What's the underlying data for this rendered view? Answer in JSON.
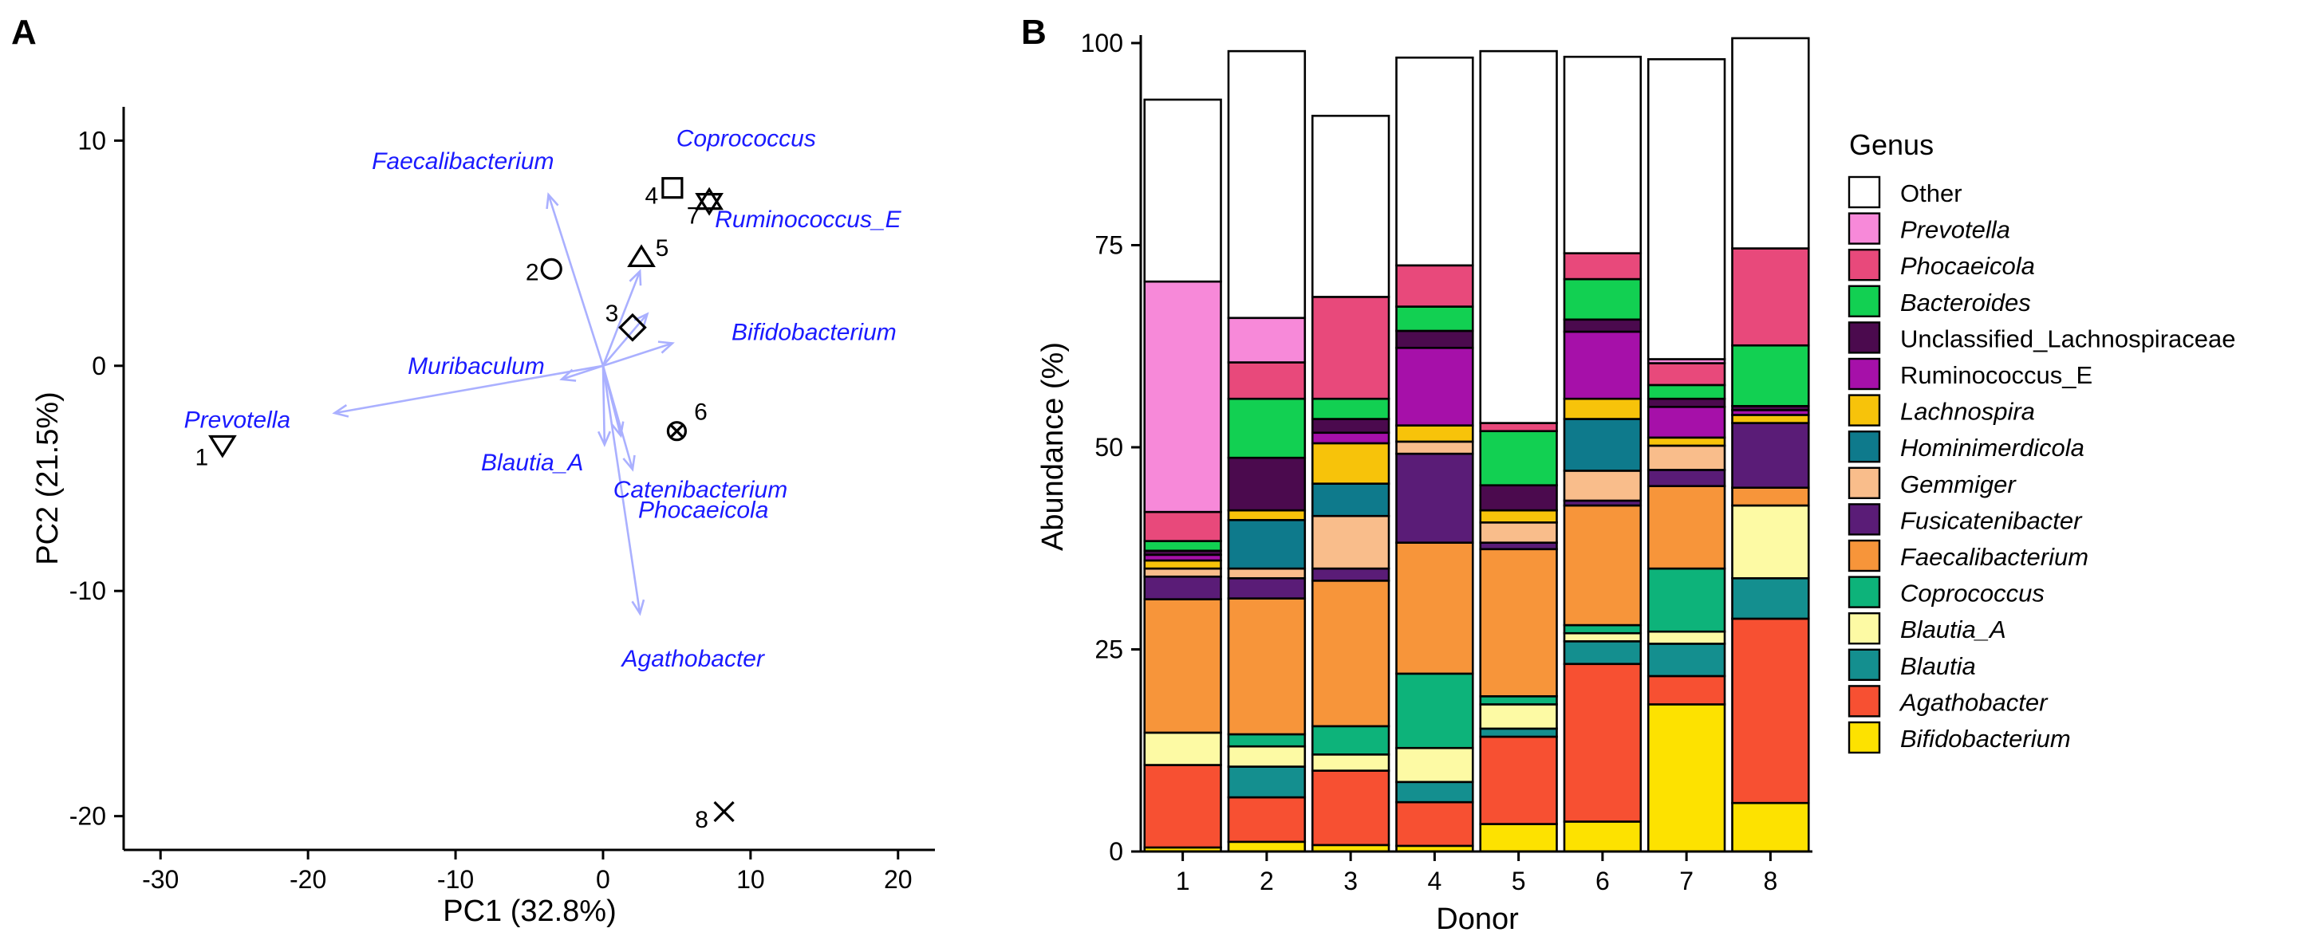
{
  "colors": {
    "arrow": "#aab0ff",
    "genus_label": "#1a1aff",
    "Other": "#ffffff",
    "Prevotella": "#f789d9",
    "Phocaeicola": "#e8497b",
    "Bacteroides": "#12d052",
    "Unclassified_Lachnospiraceae": "#4b0a4e",
    "Ruminococcus_E": "#a610a9",
    "Lachnospira": "#f7c30a",
    "Hominimerdicola": "#0e7a8c",
    "Gemmiger": "#f9bd8b",
    "Fusicatenibacter": "#5a1c77",
    "Faecalibacterium": "#f7953a",
    "Coprococcus": "#0db37a",
    "Blautia_A": "#fdfaa4",
    "Blautia": "#148f8f",
    "Agathobacter": "#f75032",
    "Bifidobacterium": "#fde200"
  },
  "chart_data": [
    {
      "panel": "A",
      "type": "scatter",
      "subtype": "pca-biplot",
      "xlabel": "PC1 (32.8%)",
      "ylabel": "PC2 (21.5%)",
      "xlim": [
        -32.5,
        22.5
      ],
      "ylim": [
        -21.5,
        11.5
      ],
      "xticks": [
        -30,
        -20,
        -10,
        0,
        10,
        20
      ],
      "yticks": [
        -20,
        -10,
        0,
        10
      ],
      "points": [
        {
          "label": "1",
          "x": -25.8,
          "y": -3.5,
          "shape": "triangle-down"
        },
        {
          "label": "2",
          "x": -3.5,
          "y": 4.3,
          "shape": "circle"
        },
        {
          "label": "3",
          "x": 2.0,
          "y": 1.7,
          "shape": "diamond"
        },
        {
          "label": "4",
          "x": 4.7,
          "y": 7.9,
          "shape": "square"
        },
        {
          "label": "5",
          "x": 2.6,
          "y": 4.8,
          "shape": "triangle-up"
        },
        {
          "label": "6",
          "x": 5.0,
          "y": -2.9,
          "shape": "circle-x"
        },
        {
          "label": "7",
          "x": 7.2,
          "y": 7.3,
          "shape": "hexagram"
        },
        {
          "label": "8",
          "x": 8.2,
          "y": -19.8,
          "shape": "x"
        }
      ],
      "loadings": [
        {
          "genus": "Prevotella",
          "x": -18.2,
          "y": -2.1
        },
        {
          "genus": "Faecalibacterium",
          "x": -3.7,
          "y": 7.6
        },
        {
          "genus": "Coprococcus",
          "x": 2.5,
          "y": 4.2
        },
        {
          "genus": "Ruminococcus_E",
          "x": 3.0,
          "y": 2.3
        },
        {
          "genus": "Bifidobacterium",
          "x": 4.7,
          "y": 1.0
        },
        {
          "genus": "Muribaculum",
          "x": -2.8,
          "y": -0.6
        },
        {
          "genus": "Blautia_A",
          "x": 0.1,
          "y": -3.5
        },
        {
          "genus": "Catenibacterium",
          "x": 1.2,
          "y": -3.1
        },
        {
          "genus": "Phocaeicola",
          "x": 2.0,
          "y": -4.6
        },
        {
          "genus": "Agathobacter",
          "x": 2.5,
          "y": -11.0
        }
      ],
      "genus_labels": [
        {
          "text": "Faecalibacterium",
          "x": -9.5,
          "y": 9.1
        },
        {
          "text": "Coprococcus",
          "x": 9.7,
          "y": 10.1
        },
        {
          "text": "Ruminococcus_E",
          "x": 13.9,
          "y": 6.5
        },
        {
          "text": "Bifidobacterium",
          "x": 14.3,
          "y": 1.5
        },
        {
          "text": "Muribaculum",
          "x": -8.6,
          "y": 0.0
        },
        {
          "text": "Prevotella",
          "x": -24.8,
          "y": -2.4
        },
        {
          "text": "Blautia_A",
          "x": -4.8,
          "y": -4.3
        },
        {
          "text": "Catenibacterium",
          "x": 6.6,
          "y": -5.5
        },
        {
          "text": "Phocaeicola",
          "x": 6.8,
          "y": -6.4
        },
        {
          "text": "Agathobacter",
          "x": 6.1,
          "y": -13.0
        }
      ]
    },
    {
      "panel": "B",
      "type": "bar",
      "stacked": true,
      "xlabel": "Donor",
      "ylabel": "Abundance (%)",
      "ylim": [
        0,
        100
      ],
      "yticks": [
        0,
        25,
        50,
        75,
        100
      ],
      "categories": [
        "1",
        "2",
        "3",
        "4",
        "5",
        "6",
        "7",
        "8"
      ],
      "series": [
        {
          "name": "Bifidobacterium",
          "values": [
            0.5,
            1.2,
            0.8,
            0.7,
            3.4,
            3.7,
            18.2,
            6.0
          ]
        },
        {
          "name": "Agathobacter",
          "values": [
            10.2,
            5.5,
            9.2,
            5.4,
            10.8,
            19.5,
            3.5,
            22.8
          ]
        },
        {
          "name": "Blautia",
          "values": [
            0.0,
            3.8,
            0.0,
            2.5,
            1.0,
            2.8,
            4.0,
            5.0
          ]
        },
        {
          "name": "Blautia_A",
          "values": [
            4.0,
            2.5,
            2.0,
            4.2,
            3.0,
            1.0,
            1.5,
            9.0
          ]
        },
        {
          "name": "Coprococcus",
          "values": [
            0.0,
            1.5,
            3.5,
            9.2,
            1.0,
            1.0,
            7.8,
            0.0
          ]
        },
        {
          "name": "Faecalibacterium",
          "values": [
            16.5,
            16.8,
            18.0,
            16.2,
            18.2,
            14.8,
            10.2,
            2.2
          ]
        },
        {
          "name": "Fusicatenibacter",
          "values": [
            2.8,
            2.5,
            1.5,
            11.0,
            0.8,
            0.6,
            2.0,
            8.0
          ]
        },
        {
          "name": "Gemmiger",
          "values": [
            1.0,
            1.2,
            6.5,
            1.5,
            2.5,
            3.7,
            3.0,
            0.0
          ]
        },
        {
          "name": "Hominimerdicola",
          "values": [
            0.0,
            6.0,
            4.0,
            0.0,
            0.0,
            6.4,
            0.0,
            0.0
          ]
        },
        {
          "name": "Lachnospira",
          "values": [
            1.0,
            1.2,
            5.0,
            2.0,
            1.5,
            2.5,
            1.0,
            1.0
          ]
        },
        {
          "name": "Ruminococcus_E",
          "values": [
            0.7,
            0.0,
            1.3,
            9.6,
            0.0,
            8.3,
            3.8,
            0.6
          ]
        },
        {
          "name": "Unclassified_Lachnospiraceae",
          "values": [
            0.5,
            6.5,
            1.7,
            2.1,
            3.1,
            1.5,
            1.0,
            0.5
          ]
        },
        {
          "name": "Bacteroides",
          "values": [
            1.2,
            7.3,
            2.5,
            3.0,
            6.7,
            5.0,
            1.7,
            7.5
          ]
        },
        {
          "name": "Phocaeicola",
          "values": [
            3.6,
            4.5,
            12.6,
            5.1,
            1.0,
            3.2,
            2.7,
            12.0
          ]
        },
        {
          "name": "Prevotella",
          "values": [
            28.5,
            5.5,
            0.0,
            0.0,
            0.0,
            0.0,
            0.5,
            0.0
          ]
        },
        {
          "name": "Other",
          "values": [
            22.5,
            33.0,
            22.4,
            25.7,
            46.0,
            24.3,
            37.1,
            26.0
          ]
        }
      ],
      "legend": {
        "title": "Genus",
        "position": "right",
        "entries": [
          {
            "name": "Other",
            "italic": false
          },
          {
            "name": "Prevotella",
            "italic": true
          },
          {
            "name": "Phocaeicola",
            "italic": true
          },
          {
            "name": "Bacteroides",
            "italic": true
          },
          {
            "name": "Unclassified_Lachnospiraceae",
            "italic": false
          },
          {
            "name": "Ruminococcus_E",
            "italic": false
          },
          {
            "name": "Lachnospira",
            "italic": true
          },
          {
            "name": "Hominimerdicola",
            "italic": true
          },
          {
            "name": "Gemmiger",
            "italic": true
          },
          {
            "name": "Fusicatenibacter",
            "italic": true
          },
          {
            "name": "Faecalibacterium",
            "italic": true
          },
          {
            "name": "Coprococcus",
            "italic": true
          },
          {
            "name": "Blautia_A",
            "italic": true
          },
          {
            "name": "Blautia",
            "italic": true
          },
          {
            "name": "Agathobacter",
            "italic": true
          },
          {
            "name": "Bifidobacterium",
            "italic": true
          }
        ]
      }
    }
  ],
  "panels": {
    "a_letter": "A",
    "b_letter": "B"
  }
}
